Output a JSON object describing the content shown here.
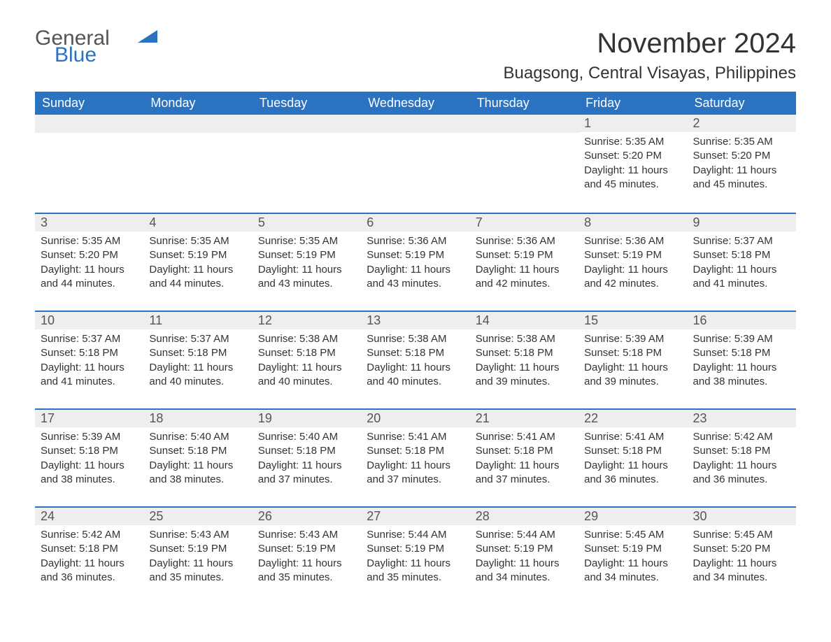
{
  "logo": {
    "text1": "General",
    "text2": "Blue",
    "accent_color": "#2b72c0"
  },
  "title": "November 2024",
  "location": "Buagsong, Central Visayas, Philippines",
  "colors": {
    "header_bg": "#2b72c0",
    "header_text": "#ffffff",
    "daynum_bg": "#eeeeee",
    "border": "#2b72c0",
    "body_text": "#333333"
  },
  "weekdays": [
    "Sunday",
    "Monday",
    "Tuesday",
    "Wednesday",
    "Thursday",
    "Friday",
    "Saturday"
  ],
  "weeks": [
    [
      null,
      null,
      null,
      null,
      null,
      {
        "n": "1",
        "sunrise": "Sunrise: 5:35 AM",
        "sunset": "Sunset: 5:20 PM",
        "daylight": "Daylight: 11 hours and 45 minutes."
      },
      {
        "n": "2",
        "sunrise": "Sunrise: 5:35 AM",
        "sunset": "Sunset: 5:20 PM",
        "daylight": "Daylight: 11 hours and 45 minutes."
      }
    ],
    [
      {
        "n": "3",
        "sunrise": "Sunrise: 5:35 AM",
        "sunset": "Sunset: 5:20 PM",
        "daylight": "Daylight: 11 hours and 44 minutes."
      },
      {
        "n": "4",
        "sunrise": "Sunrise: 5:35 AM",
        "sunset": "Sunset: 5:19 PM",
        "daylight": "Daylight: 11 hours and 44 minutes."
      },
      {
        "n": "5",
        "sunrise": "Sunrise: 5:35 AM",
        "sunset": "Sunset: 5:19 PM",
        "daylight": "Daylight: 11 hours and 43 minutes."
      },
      {
        "n": "6",
        "sunrise": "Sunrise: 5:36 AM",
        "sunset": "Sunset: 5:19 PM",
        "daylight": "Daylight: 11 hours and 43 minutes."
      },
      {
        "n": "7",
        "sunrise": "Sunrise: 5:36 AM",
        "sunset": "Sunset: 5:19 PM",
        "daylight": "Daylight: 11 hours and 42 minutes."
      },
      {
        "n": "8",
        "sunrise": "Sunrise: 5:36 AM",
        "sunset": "Sunset: 5:19 PM",
        "daylight": "Daylight: 11 hours and 42 minutes."
      },
      {
        "n": "9",
        "sunrise": "Sunrise: 5:37 AM",
        "sunset": "Sunset: 5:18 PM",
        "daylight": "Daylight: 11 hours and 41 minutes."
      }
    ],
    [
      {
        "n": "10",
        "sunrise": "Sunrise: 5:37 AM",
        "sunset": "Sunset: 5:18 PM",
        "daylight": "Daylight: 11 hours and 41 minutes."
      },
      {
        "n": "11",
        "sunrise": "Sunrise: 5:37 AM",
        "sunset": "Sunset: 5:18 PM",
        "daylight": "Daylight: 11 hours and 40 minutes."
      },
      {
        "n": "12",
        "sunrise": "Sunrise: 5:38 AM",
        "sunset": "Sunset: 5:18 PM",
        "daylight": "Daylight: 11 hours and 40 minutes."
      },
      {
        "n": "13",
        "sunrise": "Sunrise: 5:38 AM",
        "sunset": "Sunset: 5:18 PM",
        "daylight": "Daylight: 11 hours and 40 minutes."
      },
      {
        "n": "14",
        "sunrise": "Sunrise: 5:38 AM",
        "sunset": "Sunset: 5:18 PM",
        "daylight": "Daylight: 11 hours and 39 minutes."
      },
      {
        "n": "15",
        "sunrise": "Sunrise: 5:39 AM",
        "sunset": "Sunset: 5:18 PM",
        "daylight": "Daylight: 11 hours and 39 minutes."
      },
      {
        "n": "16",
        "sunrise": "Sunrise: 5:39 AM",
        "sunset": "Sunset: 5:18 PM",
        "daylight": "Daylight: 11 hours and 38 minutes."
      }
    ],
    [
      {
        "n": "17",
        "sunrise": "Sunrise: 5:39 AM",
        "sunset": "Sunset: 5:18 PM",
        "daylight": "Daylight: 11 hours and 38 minutes."
      },
      {
        "n": "18",
        "sunrise": "Sunrise: 5:40 AM",
        "sunset": "Sunset: 5:18 PM",
        "daylight": "Daylight: 11 hours and 38 minutes."
      },
      {
        "n": "19",
        "sunrise": "Sunrise: 5:40 AM",
        "sunset": "Sunset: 5:18 PM",
        "daylight": "Daylight: 11 hours and 37 minutes."
      },
      {
        "n": "20",
        "sunrise": "Sunrise: 5:41 AM",
        "sunset": "Sunset: 5:18 PM",
        "daylight": "Daylight: 11 hours and 37 minutes."
      },
      {
        "n": "21",
        "sunrise": "Sunrise: 5:41 AM",
        "sunset": "Sunset: 5:18 PM",
        "daylight": "Daylight: 11 hours and 37 minutes."
      },
      {
        "n": "22",
        "sunrise": "Sunrise: 5:41 AM",
        "sunset": "Sunset: 5:18 PM",
        "daylight": "Daylight: 11 hours and 36 minutes."
      },
      {
        "n": "23",
        "sunrise": "Sunrise: 5:42 AM",
        "sunset": "Sunset: 5:18 PM",
        "daylight": "Daylight: 11 hours and 36 minutes."
      }
    ],
    [
      {
        "n": "24",
        "sunrise": "Sunrise: 5:42 AM",
        "sunset": "Sunset: 5:18 PM",
        "daylight": "Daylight: 11 hours and 36 minutes."
      },
      {
        "n": "25",
        "sunrise": "Sunrise: 5:43 AM",
        "sunset": "Sunset: 5:19 PM",
        "daylight": "Daylight: 11 hours and 35 minutes."
      },
      {
        "n": "26",
        "sunrise": "Sunrise: 5:43 AM",
        "sunset": "Sunset: 5:19 PM",
        "daylight": "Daylight: 11 hours and 35 minutes."
      },
      {
        "n": "27",
        "sunrise": "Sunrise: 5:44 AM",
        "sunset": "Sunset: 5:19 PM",
        "daylight": "Daylight: 11 hours and 35 minutes."
      },
      {
        "n": "28",
        "sunrise": "Sunrise: 5:44 AM",
        "sunset": "Sunset: 5:19 PM",
        "daylight": "Daylight: 11 hours and 34 minutes."
      },
      {
        "n": "29",
        "sunrise": "Sunrise: 5:45 AM",
        "sunset": "Sunset: 5:19 PM",
        "daylight": "Daylight: 11 hours and 34 minutes."
      },
      {
        "n": "30",
        "sunrise": "Sunrise: 5:45 AM",
        "sunset": "Sunset: 5:20 PM",
        "daylight": "Daylight: 11 hours and 34 minutes."
      }
    ]
  ]
}
